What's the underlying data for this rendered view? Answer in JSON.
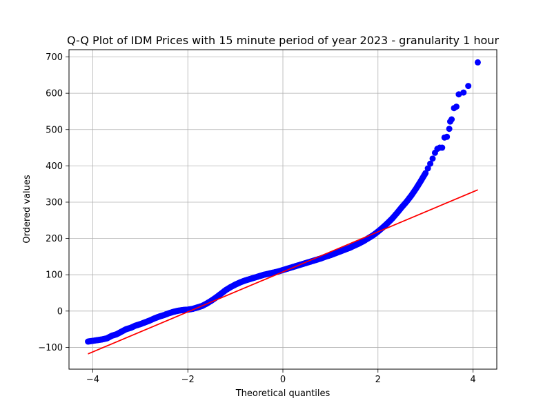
{
  "chart_data": {
    "type": "scatter",
    "title": "Q-Q Plot of IDM Prices with 15 minute period of year 2023 - granularity 1 hour",
    "xlabel": "Theoretical quantiles",
    "ylabel": "Ordered values",
    "xlim": [
      -4.5,
      4.5
    ],
    "ylim": [
      -160,
      720
    ],
    "x_ticks": [
      -4,
      -2,
      0,
      2,
      4
    ],
    "x_tick_labels": [
      "−4",
      "−2",
      "0",
      "2",
      "4"
    ],
    "y_ticks": [
      -100,
      0,
      100,
      200,
      300,
      400,
      500,
      600,
      700
    ],
    "y_tick_labels": [
      "−100",
      "0",
      "100",
      "200",
      "300",
      "400",
      "500",
      "600",
      "700"
    ],
    "grid": true,
    "colors": {
      "points": "#0000ff",
      "line": "#ff0000",
      "grid": "#b0b0b0"
    },
    "series": [
      {
        "kind": "scatter",
        "x": [
          -4.1,
          -3.9,
          -3.8,
          -3.7,
          -3.6,
          -3.5,
          -3.4,
          -3.3,
          -3.2,
          -3.1,
          -3.0,
          -2.9,
          -2.8,
          -2.7,
          -2.6,
          -2.5,
          -2.4,
          -2.3,
          -2.2,
          -2.1,
          -2.0,
          -1.9,
          -1.8,
          -1.7,
          -1.6,
          -1.5,
          -1.4,
          -1.3,
          -1.2,
          -1.1,
          -1.0,
          -0.9,
          -0.8,
          -0.7,
          -0.6,
          -0.5,
          -0.4,
          -0.3,
          -0.2,
          -0.1,
          0.0,
          0.1,
          0.2,
          0.3,
          0.4,
          0.5,
          0.6,
          0.7,
          0.8,
          0.9,
          1.0,
          1.1,
          1.2,
          1.3,
          1.4,
          1.5,
          1.6,
          1.7,
          1.8,
          1.9,
          2.0,
          2.1,
          2.2,
          2.3,
          2.4,
          2.5,
          2.6,
          2.7,
          2.8,
          2.9,
          3.0,
          3.05,
          3.1,
          3.15,
          3.2,
          3.25,
          3.3,
          3.35,
          3.4,
          3.45,
          3.5,
          3.52,
          3.55,
          3.6,
          3.65,
          3.7,
          3.8,
          3.9,
          4.1
        ],
        "y": [
          -84,
          -80,
          -78,
          -75,
          -68,
          -64,
          -57,
          -50,
          -46,
          -40,
          -36,
          -31,
          -26,
          -20,
          -15,
          -11,
          -6,
          -2,
          1,
          3,
          4,
          6,
          10,
          14,
          21,
          29,
          38,
          48,
          58,
          66,
          73,
          79,
          84,
          88,
          92,
          96,
          100,
          103,
          106,
          109,
          113,
          117,
          121,
          125,
          129,
          133,
          137,
          141,
          145,
          150,
          154,
          159,
          164,
          169,
          174,
          180,
          186,
          193,
          201,
          209,
          219,
          230,
          242,
          255,
          270,
          286,
          301,
          318,
          337,
          358,
          380,
          393,
          406,
          420,
          436,
          447,
          450,
          450,
          478,
          480,
          502,
          522,
          528,
          559,
          563,
          597,
          602,
          620,
          685
        ]
      },
      {
        "kind": "line",
        "x": [
          -4.1,
          4.1
        ],
        "y": [
          -118,
          334
        ]
      }
    ]
  }
}
